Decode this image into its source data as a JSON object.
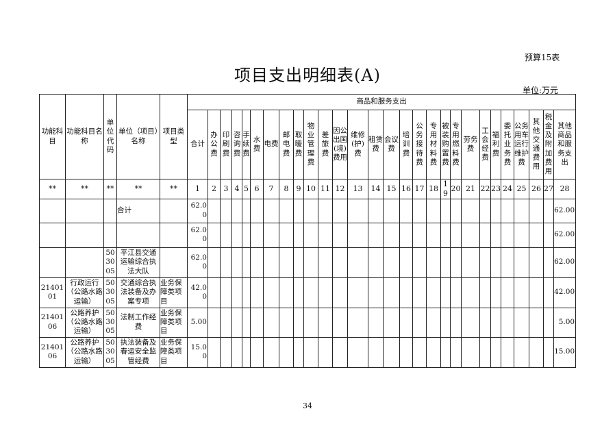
{
  "form_no": "预算15表",
  "title": "项目支出明细表(A)",
  "unit": "单位:万元",
  "page_number": "34",
  "table": {
    "group_header": "商品和服务支出",
    "fixed_headers": [
      "功能科目",
      "功能科目名称",
      "单位代码",
      "单位（项目）名称",
      "项目类型"
    ],
    "expense_headers": [
      "合计",
      "办公费",
      "印刷费",
      "咨询费",
      "手续费",
      "水费",
      "电费",
      "邮电费",
      "取暖费",
      "物业管理费",
      "差旅费",
      "因公出国(境)费用",
      "维修(护)费",
      "租赁费",
      "会议费",
      "培训费",
      "公务接待费",
      "专用材料费",
      "被装购置费",
      "专用燃料费",
      "劳务费",
      "工会经费",
      "福利费",
      "委托业务费",
      "公务用车运行维护费",
      "其他交通费用",
      "税金及附加费用",
      "其他商品和服务支出"
    ],
    "number_row": [
      "**",
      "**",
      "**",
      "**",
      "**",
      "1",
      "2",
      "3",
      "4",
      "5",
      "6",
      "7",
      "8",
      "9",
      "10",
      "11",
      "12",
      "13",
      "14",
      "15",
      "16",
      "17",
      "18",
      "19",
      "20",
      "21",
      "22",
      "23",
      "24",
      "25",
      "26",
      "27",
      "28"
    ],
    "rows": [
      {
        "code": "",
        "name": "",
        "unit_code": "",
        "project": "合计",
        "type": "",
        "total": "62.00",
        "other": "62.00"
      },
      {
        "code": "",
        "name": "",
        "unit_code": "",
        "project": "",
        "type": "",
        "total": "62.00",
        "other": "62.00"
      },
      {
        "code": "",
        "name": "",
        "unit_code": "503005",
        "project": "平江县交通运输综合执法大队",
        "type": "",
        "total": "62.00",
        "other": "62.00"
      },
      {
        "code": "2140101",
        "name": "行政运行（公路水路运输）",
        "unit_code": "503005",
        "project": "交通综合执法装备及办案专项",
        "type": "业务保障类项目",
        "total": "42.00",
        "other": "42.00"
      },
      {
        "code": "2140106",
        "name": "公路养护（公路水路运输）",
        "unit_code": "503005",
        "project": "法制工作经费",
        "type": "业务保障类项目",
        "total": "5.00",
        "other": "5.00"
      },
      {
        "code": "2140106",
        "name": "公路养护（公路水路运输）",
        "unit_code": "503005",
        "project": "执法装备及春运安全监管经费",
        "type": "业务保障类项目",
        "total": "15.00",
        "other": "15.00"
      }
    ]
  }
}
